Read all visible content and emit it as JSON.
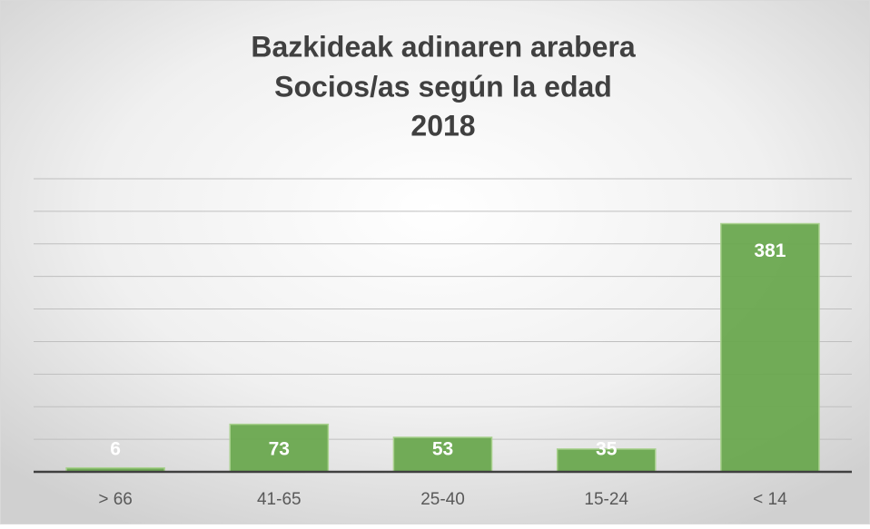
{
  "chart_data": {
    "type": "bar",
    "title": [
      "Bazkideak adinaren arabera",
      "Socios/as según la edad",
      "2018"
    ],
    "categories": [
      "> 66",
      "41-65",
      "25-40",
      "15-24",
      "< 14"
    ],
    "values": [
      6,
      73,
      53,
      35,
      381
    ],
    "color": "#6aa84f",
    "ylim": [
      0,
      450
    ],
    "yticks": [
      0,
      50,
      100,
      150,
      200,
      250,
      300,
      350,
      400,
      450
    ],
    "grid": true
  }
}
